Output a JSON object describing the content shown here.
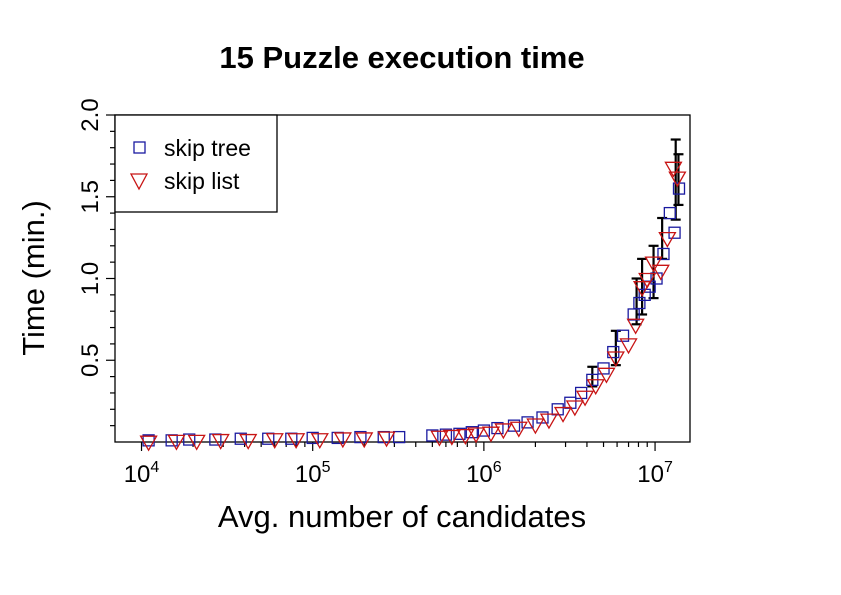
{
  "chart_data": {
    "type": "scatter",
    "title": "15 Puzzle execution time",
    "xlabel": "Avg. number of candidates",
    "ylabel": "Time (min.)",
    "x_scale": "log",
    "xlim": [
      7000,
      16000000
    ],
    "ylim": [
      0,
      2.0
    ],
    "x_ticks": [
      {
        "base": "10",
        "exp": "4",
        "value": 10000
      },
      {
        "base": "10",
        "exp": "5",
        "value": 100000
      },
      {
        "base": "10",
        "exp": "6",
        "value": 1000000
      },
      {
        "base": "10",
        "exp": "7",
        "value": 10000000
      }
    ],
    "y_ticks": [
      {
        "label": "0.5",
        "value": 0.5
      },
      {
        "label": "1.0",
        "value": 1.0
      },
      {
        "label": "1.5",
        "value": 1.5
      },
      {
        "label": "2.0",
        "value": 2.0
      }
    ],
    "grid": false,
    "legend_position": "top-left",
    "series": [
      {
        "name": "skip tree",
        "marker": "square",
        "color": "#1a1aa0",
        "x": [
          11000,
          15000,
          19000,
          27000,
          38000,
          55000,
          75000,
          100000,
          140000,
          190000,
          260000,
          320000,
          500000,
          600000,
          720000,
          850000,
          1000000,
          1200000,
          1500000,
          1800000,
          2200000,
          2700000,
          3200000,
          3700000,
          4300000,
          5000000,
          5700000,
          6500000,
          7500000,
          8100000,
          8700000,
          9300000,
          10200000,
          11200000,
          12200000,
          13000000,
          13800000
        ],
        "y": [
          0.01,
          0.01,
          0.015,
          0.015,
          0.02,
          0.02,
          0.02,
          0.025,
          0.025,
          0.03,
          0.03,
          0.03,
          0.04,
          0.045,
          0.05,
          0.06,
          0.07,
          0.085,
          0.1,
          0.12,
          0.15,
          0.2,
          0.24,
          0.3,
          0.38,
          0.45,
          0.55,
          0.65,
          0.78,
          0.85,
          0.9,
          0.95,
          1.0,
          1.15,
          1.4,
          1.28,
          1.55
        ]
      },
      {
        "name": "skip list",
        "marker": "triangle-down",
        "color": "#c81414",
        "x": [
          11000,
          16000,
          21000,
          29000,
          42000,
          60000,
          80000,
          110000,
          150000,
          200000,
          270000,
          550000,
          650000,
          780000,
          900000,
          1100000,
          1300000,
          1600000,
          2000000,
          2400000,
          2900000,
          3400000,
          3900000,
          4500000,
          5200000,
          5900000,
          7000000,
          7700000,
          8400000,
          9000000,
          9800000,
          10800000,
          11800000,
          12800000,
          13500000
        ],
        "y": [
          0.005,
          0.01,
          0.01,
          0.015,
          0.015,
          0.02,
          0.02,
          0.02,
          0.025,
          0.025,
          0.03,
          0.035,
          0.04,
          0.045,
          0.055,
          0.06,
          0.08,
          0.09,
          0.11,
          0.14,
          0.18,
          0.22,
          0.28,
          0.35,
          0.42,
          0.52,
          0.6,
          0.72,
          0.95,
          1.0,
          1.1,
          1.05,
          1.25,
          1.68,
          1.62
        ]
      }
    ],
    "error_bars": [
      {
        "x": 4300000,
        "lo": 0.34,
        "hi": 0.46
      },
      {
        "x": 5900000,
        "lo": 0.47,
        "hi": 0.68
      },
      {
        "x": 7800000,
        "lo": 0.72,
        "hi": 1.0
      },
      {
        "x": 8400000,
        "lo": 0.78,
        "hi": 1.12
      },
      {
        "x": 9800000,
        "lo": 0.88,
        "hi": 1.2
      },
      {
        "x": 11000000,
        "lo": 1.12,
        "hi": 1.37
      },
      {
        "x": 13200000,
        "lo": 1.36,
        "hi": 1.85
      },
      {
        "x": 13700000,
        "lo": 1.45,
        "hi": 1.76
      }
    ],
    "error_bar_color": "#000000"
  }
}
